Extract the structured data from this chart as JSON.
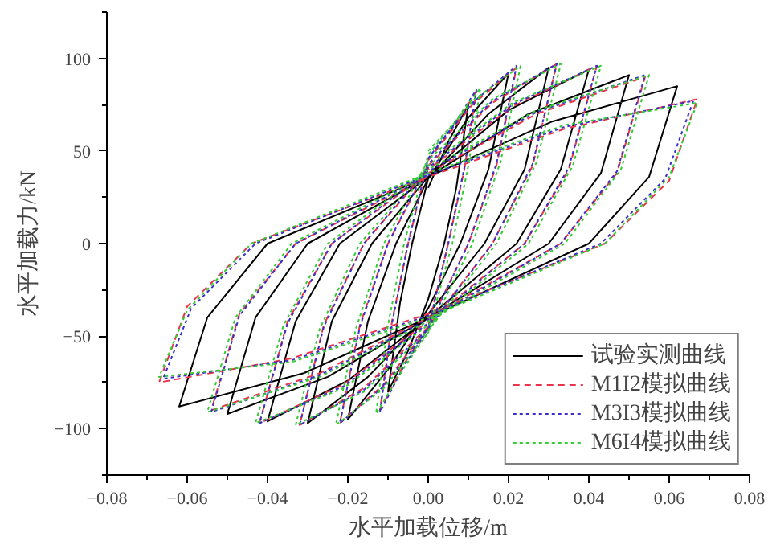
{
  "chart_data": {
    "type": "line",
    "xlabel": "水平加载位移/m",
    "ylabel": "水平加载力/kN",
    "xlim": [
      -0.08,
      0.08
    ],
    "ylim": [
      -125,
      125
    ],
    "xticks": [
      {
        "value": -0.08,
        "label": "−0.08"
      },
      {
        "value": -0.07,
        "label": null
      },
      {
        "value": -0.06,
        "label": "−0.06"
      },
      {
        "value": -0.05,
        "label": null
      },
      {
        "value": -0.04,
        "label": "−0.04"
      },
      {
        "value": -0.03,
        "label": null
      },
      {
        "value": -0.02,
        "label": "−0.02"
      },
      {
        "value": -0.01,
        "label": null
      },
      {
        "value": 0,
        "label": "0.00"
      },
      {
        "value": 0.01,
        "label": null
      },
      {
        "value": 0.02,
        "label": "0.02"
      },
      {
        "value": 0.03,
        "label": null
      },
      {
        "value": 0.04,
        "label": "0.04"
      },
      {
        "value": 0.05,
        "label": null
      },
      {
        "value": 0.06,
        "label": "0.06"
      },
      {
        "value": 0.07,
        "label": null
      },
      {
        "value": 0.08,
        "label": "0.08"
      }
    ],
    "yticks": [
      {
        "value": -125,
        "label": null
      },
      {
        "value": -100,
        "label": "−100"
      },
      {
        "value": -75,
        "label": null
      },
      {
        "value": -50,
        "label": "−50"
      },
      {
        "value": -25,
        "label": null
      },
      0,
      {
        "value": 25,
        "label": null
      },
      50,
      {
        "value": 75,
        "label": null
      },
      100,
      {
        "value": 125,
        "label": null
      }
    ],
    "grid": false,
    "legend": "bottom right",
    "marker": "none",
    "series": [
      {
        "name": "试验实测曲线",
        "color": "#000000",
        "line_style": "solid",
        "x": [
          0,
          0.005,
          0.01,
          0.007,
          0.004,
          0,
          -0.005,
          -0.01,
          -0.007,
          -0.004,
          0,
          0.01,
          0.02,
          0.015,
          0.008,
          0,
          -0.01,
          -0.02,
          -0.015,
          -0.008,
          0,
          0.015,
          0.03,
          0.024,
          0.014,
          0,
          -0.015,
          -0.03,
          -0.024,
          -0.014,
          0,
          0.02,
          0.04,
          0.033,
          0.022,
          0,
          -0.02,
          -0.04,
          -0.033,
          -0.022,
          0,
          0.025,
          0.05,
          0.043,
          0.03,
          0,
          -0.025,
          -0.05,
          -0.043,
          -0.03,
          0,
          0.031,
          0.062,
          0.055,
          0.04,
          0,
          -0.031,
          -0.062,
          -0.055,
          -0.04,
          0
        ],
        "values": [
          30,
          55,
          75,
          30,
          0,
          -30,
          -58,
          -80,
          -32,
          0,
          35,
          68,
          92,
          40,
          0,
          -35,
          -68,
          -95,
          -42,
          0,
          35,
          70,
          95,
          40,
          0,
          -38,
          -72,
          -97,
          -42,
          0,
          36,
          72,
          94,
          40,
          0,
          -40,
          -74,
          -96,
          -42,
          0,
          36,
          70,
          91,
          38,
          0,
          -40,
          -72,
          -92,
          -40,
          0,
          36,
          66,
          85,
          36,
          0,
          -40,
          -70,
          -88,
          -40,
          0,
          36
        ]
      },
      {
        "name": "M1I2模拟曲线",
        "color": "#e8334a",
        "line_style": "dashed",
        "x": [
          0,
          0.006,
          0.012,
          0.009,
          0.005,
          0,
          -0.006,
          -0.012,
          -0.009,
          -0.005,
          0,
          0.011,
          0.022,
          0.017,
          0.01,
          0,
          -0.011,
          -0.022,
          -0.017,
          -0.01,
          0,
          0.016,
          0.032,
          0.026,
          0.016,
          0,
          -0.016,
          -0.032,
          -0.026,
          -0.016,
          0,
          0.021,
          0.042,
          0.035,
          0.024,
          0,
          -0.021,
          -0.042,
          -0.035,
          -0.024,
          0,
          0.027,
          0.054,
          0.047,
          0.033,
          0,
          -0.027,
          -0.054,
          -0.047,
          -0.033,
          0,
          0.034,
          0.067,
          0.06,
          0.044,
          0,
          -0.034,
          -0.067,
          -0.06,
          -0.044,
          0
        ],
        "values": [
          45,
          62,
          82,
          40,
          0,
          -45,
          -65,
          -90,
          -42,
          0,
          45,
          75,
          95,
          42,
          0,
          -45,
          -76,
          -97,
          -44,
          0,
          42,
          76,
          97,
          42,
          0,
          -45,
          -78,
          -98,
          -44,
          0,
          40,
          74,
          96,
          40,
          0,
          -42,
          -76,
          -97,
          -42,
          0,
          38,
          70,
          90,
          38,
          0,
          -40,
          -70,
          -90,
          -38,
          0,
          36,
          62,
          78,
          34,
          0,
          -38,
          -62,
          -75,
          -34,
          0,
          36
        ]
      },
      {
        "name": "M3I3模拟曲线",
        "color": "#3a2fc8",
        "line_style": "dotted",
        "x": [
          0,
          0.006,
          0.012,
          0.009,
          0.005,
          0,
          -0.006,
          -0.012,
          -0.009,
          -0.005,
          0,
          0.011,
          0.022,
          0.017,
          0.01,
          0,
          -0.011,
          -0.022,
          -0.017,
          -0.01,
          0,
          0.016,
          0.032,
          0.026,
          0.016,
          0,
          -0.016,
          -0.032,
          -0.026,
          -0.016,
          0,
          0.021,
          0.042,
          0.035,
          0.024,
          0,
          -0.021,
          -0.042,
          -0.035,
          -0.024,
          0,
          0.027,
          0.054,
          0.047,
          0.033,
          0,
          -0.027,
          -0.054,
          -0.047,
          -0.033,
          0,
          0.034,
          0.066,
          0.059,
          0.043,
          0,
          -0.034,
          -0.066,
          -0.059,
          -0.043,
          0
        ],
        "values": [
          46,
          63,
          83,
          41,
          0,
          -46,
          -66,
          -91,
          -43,
          0,
          46,
          76,
          96,
          43,
          0,
          -46,
          -77,
          -97,
          -45,
          0,
          43,
          77,
          97,
          43,
          0,
          -46,
          -79,
          -98,
          -45,
          0,
          41,
          75,
          96,
          41,
          0,
          -43,
          -77,
          -97,
          -43,
          0,
          39,
          71,
          91,
          39,
          0,
          -41,
          -71,
          -91,
          -39,
          0,
          37,
          63,
          77,
          35,
          0,
          -39,
          -63,
          -73,
          -35,
          0,
          37
        ]
      },
      {
        "name": "M6I4模拟曲线",
        "color": "#33cc33",
        "line_style": "dotted",
        "x": [
          0,
          0.006,
          0.013,
          0.01,
          0.006,
          0,
          -0.006,
          -0.013,
          -0.01,
          -0.006,
          0,
          0.011,
          0.023,
          0.018,
          0.011,
          0,
          -0.011,
          -0.023,
          -0.018,
          -0.011,
          0,
          0.016,
          0.033,
          0.027,
          0.017,
          0,
          -0.016,
          -0.033,
          -0.027,
          -0.017,
          0,
          0.021,
          0.043,
          0.036,
          0.025,
          0,
          -0.021,
          -0.043,
          -0.036,
          -0.025,
          0,
          0.027,
          0.055,
          0.048,
          0.034,
          0,
          -0.027,
          -0.055,
          -0.048,
          -0.034,
          0,
          0.034,
          0.067,
          0.06,
          0.044,
          0,
          -0.034,
          -0.067,
          -0.06,
          -0.044,
          0
        ],
        "values": [
          50,
          64,
          84,
          42,
          0,
          -48,
          -67,
          -92,
          -44,
          0,
          48,
          77,
          96,
          44,
          0,
          -48,
          -78,
          -98,
          -46,
          0,
          45,
          78,
          97,
          44,
          0,
          -47,
          -80,
          -98,
          -46,
          0,
          42,
          76,
          96,
          42,
          0,
          -44,
          -78,
          -97,
          -44,
          0,
          40,
          72,
          91,
          40,
          0,
          -42,
          -72,
          -91,
          -40,
          0,
          38,
          64,
          76,
          36,
          0,
          -40,
          -64,
          -72,
          -36,
          0,
          38
        ]
      }
    ]
  }
}
